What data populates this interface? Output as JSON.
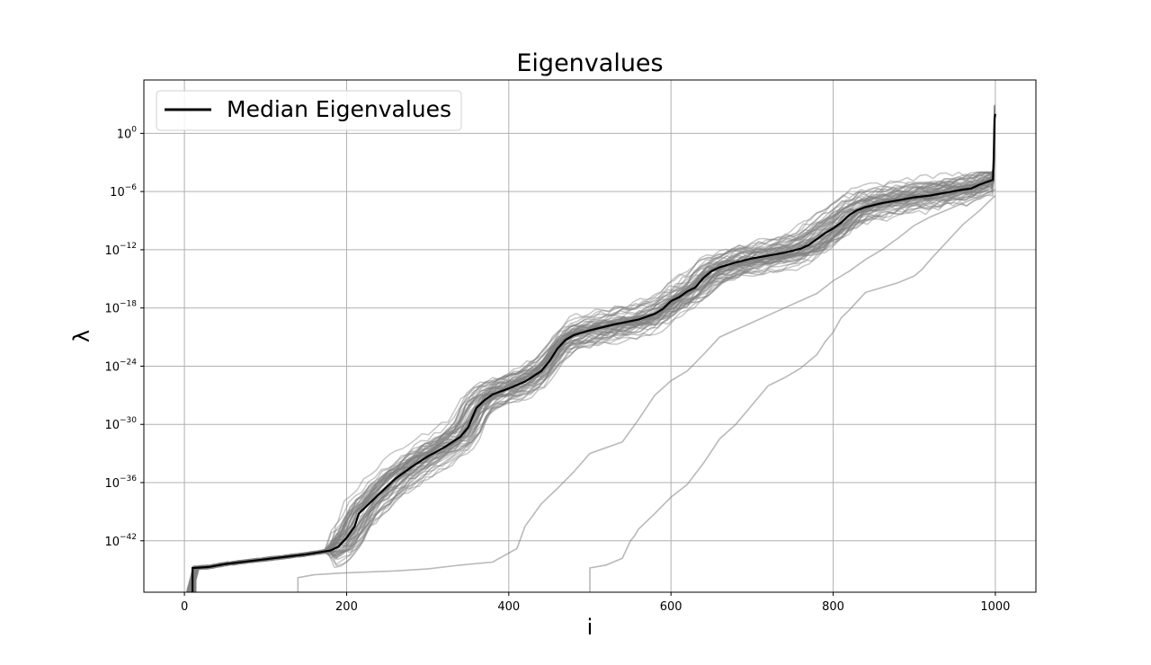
{
  "chart_data": {
    "type": "line",
    "title": "Eigenvalues",
    "xlabel": "i",
    "ylabel": "λ",
    "xlim": [
      -50,
      1050
    ],
    "ylim_log10": [
      -47.3,
      5.5
    ],
    "yscale": "log",
    "grid": true,
    "legend_position": "upper left",
    "x_ticks": [
      0,
      200,
      400,
      600,
      800,
      1000
    ],
    "y_ticks": [
      {
        "exp": 0,
        "label": "0"
      },
      {
        "exp": -6,
        "label": "−6"
      },
      {
        "exp": -12,
        "label": "−12"
      },
      {
        "exp": -18,
        "label": "−18"
      },
      {
        "exp": -24,
        "label": "−24"
      },
      {
        "exp": -30,
        "label": "−30"
      },
      {
        "exp": -36,
        "label": "−36"
      },
      {
        "exp": -42,
        "label": "−42"
      }
    ],
    "y_tick_base": "10",
    "colors": {
      "median": "#000000",
      "samples": "#808080",
      "grid": "#b0b0b0"
    },
    "median_series": {
      "name": "Median Eigenvalues",
      "x": [
        10,
        10,
        12,
        30,
        50,
        100,
        150,
        180,
        190,
        200,
        210,
        215,
        220,
        240,
        260,
        280,
        300,
        320,
        340,
        350,
        360,
        370,
        380,
        400,
        420,
        440,
        450,
        460,
        470,
        480,
        500,
        530,
        560,
        580,
        590,
        600,
        610,
        620,
        630,
        640,
        650,
        660,
        680,
        700,
        720,
        740,
        760,
        770,
        780,
        790,
        800,
        810,
        820,
        830,
        840,
        860,
        880,
        900,
        920,
        940,
        960,
        970,
        980,
        990,
        997,
        998,
        999,
        1000
      ],
      "log10_y": [
        -47.3,
        -44.8,
        -44.8,
        -44.7,
        -44.4,
        -43.9,
        -43.4,
        -43.0,
        -42.6,
        -41.7,
        -40.5,
        -39.2,
        -38.8,
        -37.2,
        -35.6,
        -34.4,
        -33.3,
        -32.4,
        -31.3,
        -30.3,
        -28.3,
        -27.5,
        -26.9,
        -26.3,
        -25.6,
        -24.5,
        -23.5,
        -22.2,
        -21.3,
        -20.8,
        -20.3,
        -19.7,
        -19.2,
        -18.6,
        -18.1,
        -17.3,
        -16.9,
        -16.3,
        -15.9,
        -14.9,
        -14.2,
        -13.8,
        -13.3,
        -12.9,
        -12.6,
        -12.3,
        -11.9,
        -11.5,
        -10.9,
        -10.3,
        -9.8,
        -9.2,
        -8.4,
        -7.9,
        -7.6,
        -7.2,
        -6.9,
        -6.6,
        -6.4,
        -6.1,
        -5.8,
        -5.7,
        -5.3,
        -5.0,
        -4.8,
        -2.5,
        1.5,
        2.0
      ]
    },
    "sample_series_count": 60,
    "outlier_series": [
      {
        "x": [
          140,
          140,
          160,
          200,
          260,
          300,
          340,
          380,
          410,
          420,
          440,
          450,
          460,
          480,
          500,
          540,
          560,
          580,
          600,
          620,
          640,
          660,
          700,
          740,
          780,
          800,
          820,
          840,
          860,
          880,
          900,
          920,
          940,
          960,
          980,
          1000
        ],
        "log10_y": [
          -47.3,
          -45.8,
          -45.5,
          -45.3,
          -45.1,
          -44.9,
          -44.5,
          -44.2,
          -42.8,
          -40.5,
          -38.2,
          -37.4,
          -36.6,
          -34.9,
          -33.0,
          -31.8,
          -29.5,
          -27.0,
          -25.5,
          -24.5,
          -22.8,
          -21.0,
          -19.5,
          -18.0,
          -16.5,
          -15.2,
          -14.2,
          -13.0,
          -12.0,
          -10.8,
          -9.5,
          -8.6,
          -7.9,
          -7.2,
          -6.5,
          -5.8
        ]
      },
      {
        "x": [
          500,
          500,
          520,
          540,
          550,
          555,
          560,
          580,
          600,
          620,
          640,
          660,
          680,
          700,
          720,
          740,
          760,
          780,
          790,
          800,
          810,
          820,
          830,
          840,
          860,
          880,
          900,
          910,
          920,
          940,
          960,
          980,
          1000
        ],
        "log10_y": [
          -47.3,
          -44.8,
          -44.5,
          -43.8,
          -42.0,
          -41.5,
          -40.8,
          -39.2,
          -37.5,
          -36.2,
          -34.0,
          -31.5,
          -30.0,
          -28.0,
          -26.0,
          -25.2,
          -24.2,
          -22.8,
          -21.5,
          -20.5,
          -19.0,
          -18.2,
          -17.3,
          -16.4,
          -15.9,
          -15.4,
          -14.7,
          -14.0,
          -13.0,
          -11.2,
          -9.4,
          -8.0,
          -6.4
        ]
      }
    ],
    "legend": [
      {
        "label": "Median Eigenvalues",
        "color": "#000000"
      }
    ]
  }
}
